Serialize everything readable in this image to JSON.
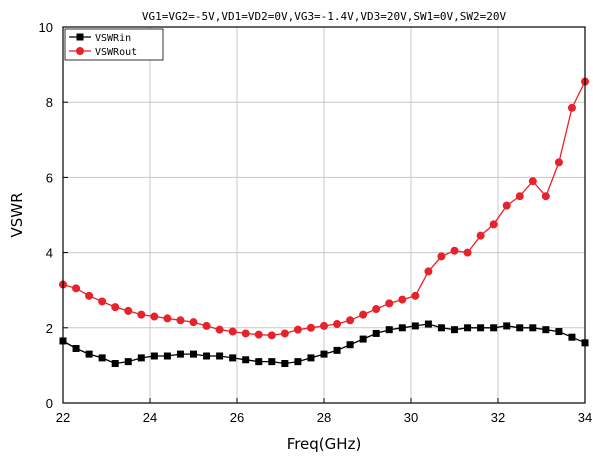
{
  "chart_data": {
    "type": "line",
    "title": "VG1=VG2=-5V,VD1=VD2=0V,VG3=-1.4V,VD3=20V,SW1=0V,SW2=20V",
    "xlabel": "Freq(GHz)",
    "ylabel": "VSWR",
    "xlim": [
      22,
      34
    ],
    "ylim": [
      0,
      10
    ],
    "xticks": [
      22,
      24,
      26,
      28,
      30,
      32,
      34
    ],
    "yticks": [
      0,
      2,
      4,
      6,
      8,
      10
    ],
    "grid": true,
    "legend_position": "top-left",
    "series": [
      {
        "name": "VSWRin",
        "color": "#000000",
        "marker": "square",
        "x": [
          22.0,
          22.3,
          22.6,
          22.9,
          23.2,
          23.5,
          23.8,
          24.1,
          24.4,
          24.7,
          25.0,
          25.3,
          25.6,
          25.9,
          26.2,
          26.5,
          26.8,
          27.1,
          27.4,
          27.7,
          28.0,
          28.3,
          28.6,
          28.9,
          29.2,
          29.5,
          29.8,
          30.1,
          30.4,
          30.7,
          31.0,
          31.3,
          31.6,
          31.9,
          32.2,
          32.5,
          32.8,
          33.1,
          33.4,
          33.7,
          34.0
        ],
        "y": [
          1.65,
          1.45,
          1.3,
          1.2,
          1.05,
          1.1,
          1.2,
          1.25,
          1.25,
          1.3,
          1.3,
          1.25,
          1.25,
          1.2,
          1.15,
          1.1,
          1.1,
          1.05,
          1.1,
          1.2,
          1.3,
          1.4,
          1.55,
          1.7,
          1.85,
          1.95,
          2.0,
          2.05,
          2.1,
          2.0,
          1.95,
          2.0,
          2.0,
          2.0,
          2.05,
          2.0,
          2.0,
          1.95,
          1.9,
          1.75,
          1.6
        ]
      },
      {
        "name": "VSWRout",
        "color": "#e8222a",
        "marker": "circle",
        "x": [
          22.0,
          22.3,
          22.6,
          22.9,
          23.2,
          23.5,
          23.8,
          24.1,
          24.4,
          24.7,
          25.0,
          25.3,
          25.6,
          25.9,
          26.2,
          26.5,
          26.8,
          27.1,
          27.4,
          27.7,
          28.0,
          28.3,
          28.6,
          28.9,
          29.2,
          29.5,
          29.8,
          30.1,
          30.4,
          30.7,
          31.0,
          31.3,
          31.6,
          31.9,
          32.2,
          32.5,
          32.8,
          33.1,
          33.4,
          33.7,
          34.0
        ],
        "y": [
          3.15,
          3.05,
          2.85,
          2.7,
          2.55,
          2.45,
          2.35,
          2.3,
          2.25,
          2.2,
          2.15,
          2.05,
          1.95,
          1.9,
          1.85,
          1.82,
          1.8,
          1.85,
          1.95,
          2.0,
          2.05,
          2.1,
          2.2,
          2.35,
          2.5,
          2.65,
          2.75,
          2.85,
          3.5,
          3.9,
          4.05,
          4.0,
          4.45,
          4.75,
          5.25,
          5.5,
          5.9,
          5.5,
          6.4,
          7.85,
          8.55
        ]
      }
    ]
  }
}
